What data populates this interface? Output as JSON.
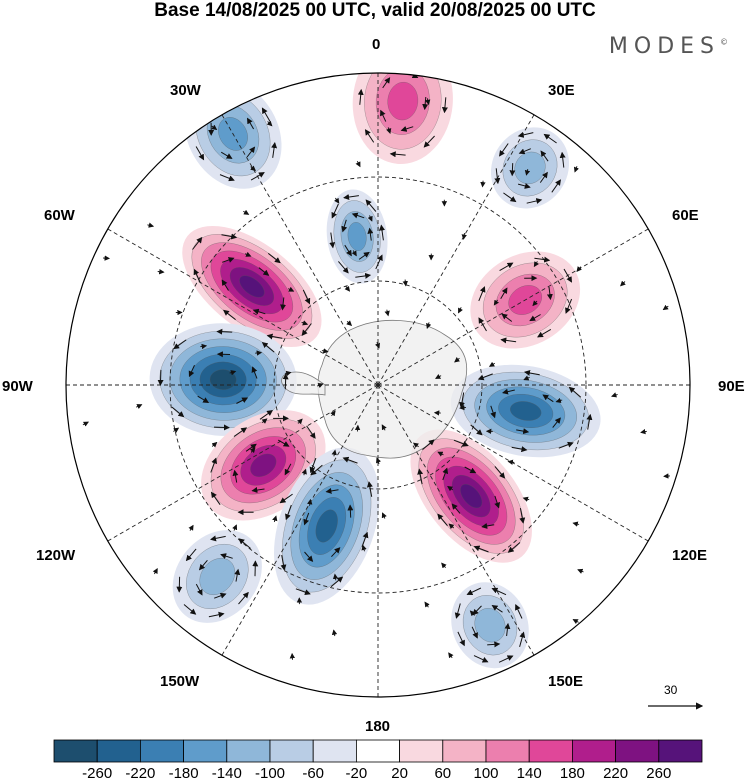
{
  "title": "Base 14/08/2025 00 UTC, valid 20/08/2025 00 UTC",
  "brand": "MODES",
  "brand_mark": "©",
  "lon_labels": {
    "top": "0",
    "ne1": "30E",
    "ne2": "60E",
    "east": "90E",
    "se1": "120E",
    "se2": "150E",
    "bottom": "180",
    "sw1": "150W",
    "sw2": "120W",
    "west": "90W",
    "nw2": "60W",
    "nw1": "30W"
  },
  "reference_vector": {
    "value": "30"
  },
  "colorbar": {
    "labels": [
      "-260",
      "-220",
      "-180",
      "-140",
      "-100",
      "-60",
      "-20",
      "20",
      "60",
      "100",
      "140",
      "180",
      "220",
      "260"
    ],
    "colors": [
      "#1d4e6e",
      "#22618f",
      "#3b7fb3",
      "#5f9ccb",
      "#8fb7d9",
      "#b9cde5",
      "#dfe4f1",
      "#ffffff",
      "#f9d9e0",
      "#f4b3c6",
      "#ec7fae",
      "#e04799",
      "#b01e8c",
      "#7e1281",
      "#56137a"
    ]
  },
  "chart_data": {
    "type": "heatmap",
    "title": "Base 14/08/2025 00 UTC, valid 20/08/2025 00 UTC",
    "projection": "south polar stereographic",
    "field": "anomaly (shaded) with wind vectors",
    "levels": [
      -260,
      -220,
      -180,
      -140,
      -100,
      -60,
      -20,
      20,
      60,
      100,
      140,
      180,
      220,
      260
    ],
    "features": [
      {
        "name": "anomaly-nw-positive",
        "lon_deg": -52,
        "value": 260
      },
      {
        "name": "anomaly-w-negative",
        "lon_deg": -88,
        "value": -260
      },
      {
        "name": "anomaly-sw-positive",
        "lon_deg": -125,
        "value": 220
      },
      {
        "name": "anomaly-s-negative",
        "lon_deg": -160,
        "value": -220
      },
      {
        "name": "anomaly-se-positive",
        "lon_deg": 140,
        "value": 260
      },
      {
        "name": "anomaly-e-negative",
        "lon_deg": 100,
        "value": -220
      },
      {
        "name": "anomaly-ne-positive",
        "lon_deg": 60,
        "value": 140
      },
      {
        "name": "anomaly-n-positive",
        "lon_deg": 5,
        "value": 140
      },
      {
        "name": "anomaly-nnw-negative",
        "lon_deg": -30,
        "value": -140
      },
      {
        "name": "anomaly-n-negative-2",
        "lon_deg": -8,
        "value": -140
      },
      {
        "name": "anomaly-ne-negative",
        "lon_deg": 35,
        "value": -100
      },
      {
        "name": "anomaly-sse-negative",
        "lon_deg": 155,
        "value": -100
      },
      {
        "name": "anomaly-ssw-negative",
        "lon_deg": -140,
        "value": -100
      }
    ]
  }
}
